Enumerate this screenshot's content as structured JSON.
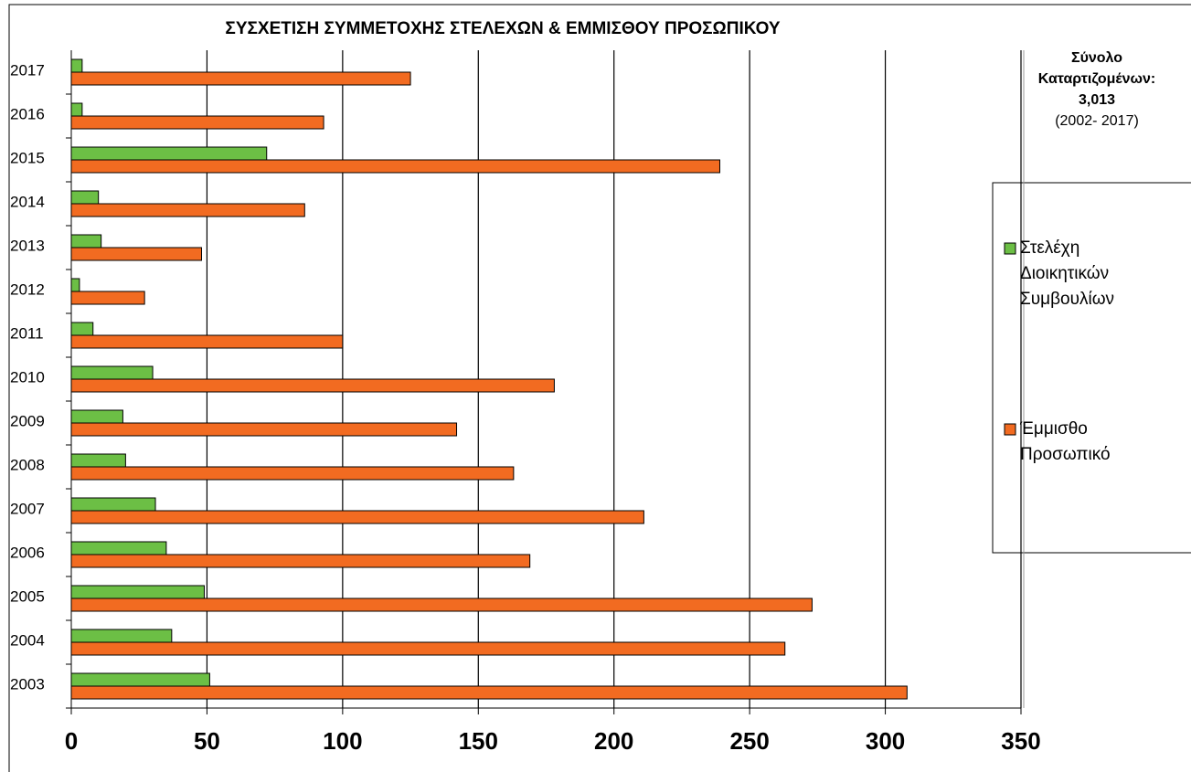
{
  "chart_data": {
    "type": "bar",
    "orientation": "horizontal",
    "title": "ΣΥΣΧΕΤΙΣΗ ΣΥΜΜΕΤΟΧΗΣ ΣΤΕΛΕΧΩΝ & ΕΜΜΙΣΘΟΥ ΠΡΟΣΩΠΙΚΟΥ",
    "annotation": [
      "Σύνολο",
      "Καταρτιζομένων:",
      "3,013",
      "(2002- 2017)"
    ],
    "categories": [
      "2003",
      "2004",
      "2005",
      "2006",
      "2007",
      "2008",
      "2009",
      "2010",
      "2011",
      "2012",
      "2013",
      "2014",
      "2015",
      "2016",
      "2017"
    ],
    "series": [
      {
        "name": "Στελέχη Διοικητικών Συμβουλίων",
        "color": "#6cbf45",
        "values": [
          51,
          37,
          49,
          35,
          31,
          20,
          19,
          30,
          8,
          3,
          11,
          10,
          72,
          4,
          4
        ]
      },
      {
        "name": "Έμμισθο Προσωπικό",
        "color": "#f26b21",
        "values": [
          308,
          263,
          273,
          169,
          211,
          163,
          142,
          178,
          100,
          27,
          48,
          86,
          239,
          93,
          125
        ]
      }
    ],
    "xlim": [
      0,
      350
    ],
    "xticks": [
      0,
      50,
      100,
      150,
      200,
      250,
      300,
      350
    ],
    "grid": true,
    "legend": "right"
  }
}
